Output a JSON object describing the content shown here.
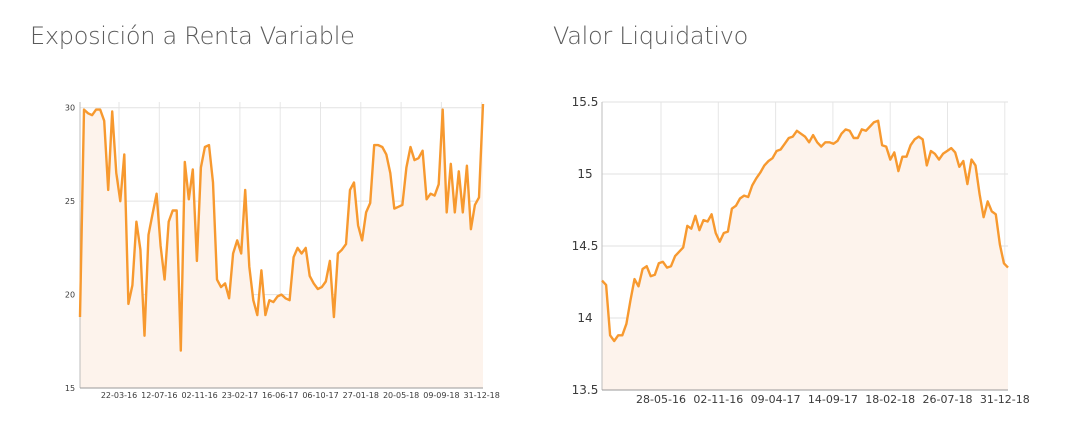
{
  "chart_data": [
    {
      "type": "area",
      "title": "Exposición a Renta Variable",
      "xlabel": "",
      "ylabel": "",
      "ylim": [
        15,
        30.2
      ],
      "yticks": [
        15,
        20,
        25,
        30
      ],
      "xtick_labels": [
        "22-03-16",
        "12-07-16",
        "02-11-16",
        "23-02-17",
        "16-06-17",
        "06-10-17",
        "27-01-18",
        "20-05-18",
        "09-09-18",
        "31-12-18"
      ],
      "grid": true,
      "line_color": "#f7992f",
      "fill_color": "#fdf3ec",
      "values": [
        18.8,
        29.9,
        29.7,
        29.6,
        29.9,
        29.9,
        29.3,
        25.6,
        29.8,
        26.5,
        25.0,
        27.5,
        19.5,
        20.5,
        23.9,
        22.4,
        17.8,
        23.2,
        24.3,
        25.4,
        22.6,
        20.8,
        23.9,
        24.5,
        24.5,
        17.0,
        27.1,
        25.1,
        26.7,
        21.8,
        26.8,
        27.9,
        28.0,
        26.0,
        20.8,
        20.4,
        20.6,
        19.8,
        22.2,
        22.9,
        22.2,
        25.6,
        21.5,
        19.7,
        18.9,
        21.3,
        18.9,
        19.7,
        19.6,
        19.9,
        20.0,
        19.8,
        19.7,
        22.0,
        22.5,
        22.2,
        22.5,
        21.0,
        20.6,
        20.3,
        20.4,
        20.7,
        21.8,
        18.8,
        22.2,
        22.4,
        22.7,
        25.6,
        26.0,
        23.7,
        22.9,
        24.4,
        24.9,
        28.0,
        28.0,
        27.9,
        27.5,
        26.5,
        24.6,
        24.7,
        24.8,
        26.8,
        27.9,
        27.2,
        27.3,
        27.7,
        25.1,
        25.4,
        25.3,
        25.9,
        29.9,
        24.4,
        27.0,
        24.4,
        26.6,
        24.4,
        26.9,
        23.5,
        24.8,
        25.2,
        30.2
      ]
    },
    {
      "type": "area",
      "title": "Valor Liquidativo",
      "xlabel": "",
      "ylabel": "",
      "ylim": [
        13.5,
        15.5
      ],
      "yticks": [
        13.5,
        14,
        14.5,
        15,
        15.5
      ],
      "xtick_labels": [
        "28-05-16",
        "02-11-16",
        "09-04-17",
        "14-09-17",
        "18-02-18",
        "26-07-18",
        "31-12-18"
      ],
      "grid": true,
      "line_color": "#f7992f",
      "fill_color": "#fdf3ec",
      "values": [
        14.26,
        14.23,
        13.88,
        13.84,
        13.88,
        13.88,
        13.96,
        14.12,
        14.27,
        14.22,
        14.34,
        14.36,
        14.29,
        14.3,
        14.38,
        14.39,
        14.35,
        14.36,
        14.43,
        14.46,
        14.49,
        14.64,
        14.62,
        14.71,
        14.61,
        14.68,
        14.67,
        14.72,
        14.59,
        14.53,
        14.59,
        14.6,
        14.76,
        14.78,
        14.83,
        14.85,
        14.84,
        14.92,
        14.97,
        15.01,
        15.06,
        15.09,
        15.11,
        15.16,
        15.17,
        15.21,
        15.25,
        15.26,
        15.3,
        15.28,
        15.26,
        15.22,
        15.27,
        15.22,
        15.19,
        15.22,
        15.22,
        15.21,
        15.23,
        15.28,
        15.31,
        15.3,
        15.25,
        15.25,
        15.31,
        15.3,
        15.33,
        15.36,
        15.37,
        15.2,
        15.19,
        15.1,
        15.15,
        15.02,
        15.12,
        15.12,
        15.2,
        15.24,
        15.26,
        15.24,
        15.06,
        15.16,
        15.14,
        15.1,
        15.14,
        15.16,
        15.18,
        15.15,
        15.05,
        15.09,
        14.93,
        15.1,
        15.06,
        14.86,
        14.7,
        14.81,
        14.74,
        14.72,
        14.51,
        14.38,
        14.35
      ]
    }
  ]
}
